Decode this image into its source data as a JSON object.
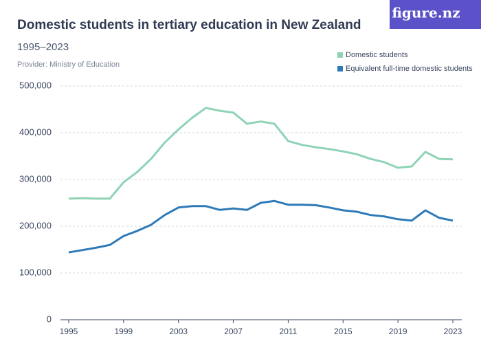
{
  "brand": "figure.nz",
  "chart_data": {
    "type": "line",
    "title": "Domestic students in tertiary education in New Zealand",
    "subtitle": "1995–2023",
    "source": "Provider: Ministry of Education",
    "x": [
      1995,
      1996,
      1997,
      1998,
      1999,
      2000,
      2001,
      2002,
      2003,
      2004,
      2005,
      2006,
      2007,
      2008,
      2009,
      2010,
      2011,
      2012,
      2013,
      2014,
      2015,
      2016,
      2017,
      2018,
      2019,
      2020,
      2021,
      2022,
      2023
    ],
    "series": [
      {
        "name": "Domestic students",
        "color": "#8fd3b6",
        "values": [
          259000,
          260000,
          259000,
          259000,
          294000,
          316000,
          344000,
          379000,
          407000,
          432000,
          453000,
          447000,
          443000,
          419000,
          424000,
          419000,
          382000,
          374000,
          369000,
          365000,
          360000,
          354000,
          344000,
          337000,
          325000,
          328000,
          359000,
          344000,
          343000
        ]
      },
      {
        "name": "Equivalent full-time domestic students",
        "color": "#2e7ab8",
        "values": [
          144000,
          149000,
          154000,
          160000,
          179000,
          190000,
          203000,
          224000,
          240000,
          243000,
          243000,
          235000,
          238000,
          235000,
          250000,
          254000,
          246000,
          246000,
          245000,
          240000,
          234000,
          231000,
          224000,
          221000,
          215000,
          212000,
          234000,
          218000,
          212000
        ]
      }
    ],
    "xlim": [
      1994.4,
      2023.65
    ],
    "xticks": [
      1995,
      1999,
      2003,
      2007,
      2011,
      2015,
      2019,
      2023
    ],
    "ylim": [
      0,
      500000
    ],
    "yticks": [
      0,
      {
        "value": 100000,
        "label": "100,000"
      },
      {
        "value": 200000,
        "label": "200,000"
      },
      {
        "value": 300000,
        "label": "300,000"
      },
      {
        "value": 400000,
        "label": "400,000"
      },
      {
        "value": 500000,
        "label": "500,000"
      }
    ],
    "grid": true,
    "legend": "top-right"
  }
}
